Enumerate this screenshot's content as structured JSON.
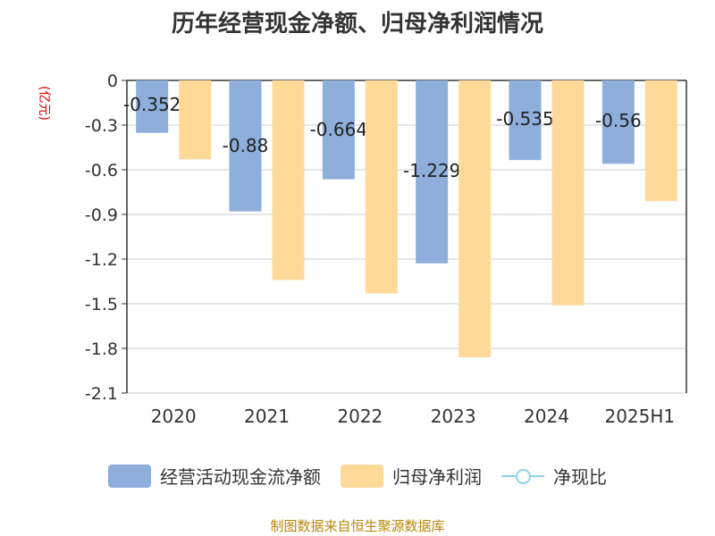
{
  "title": "历年经营现金净额、归母净利润情况",
  "unit": "(亿元)",
  "source": "制图数据来自恒生聚源数据库",
  "chart_data": {
    "type": "bar",
    "categories": [
      "2020",
      "2021",
      "2022",
      "2023",
      "2024",
      "2025H1"
    ],
    "series": [
      {
        "name": "经营活动现金流净额",
        "values": [
          -0.352,
          -0.88,
          -0.664,
          -1.229,
          -0.535,
          -0.56
        ],
        "labels": [
          "-0.352",
          "-0.88",
          "-0.664",
          "-1.229",
          "-0.535",
          "-0.56"
        ],
        "color": "#8eaedc"
      },
      {
        "name": "归母净利润",
        "values": [
          -0.53,
          -1.34,
          -1.43,
          -1.86,
          -1.51,
          -0.81
        ],
        "color": "#ffd998"
      }
    ],
    "line_series": {
      "name": "净现比",
      "color": "#8fd3e8"
    },
    "ylim": [
      -2.1,
      0
    ],
    "yticks": [
      0,
      -0.3,
      -0.6,
      -0.9,
      -1.2,
      -1.5,
      -1.8,
      -2.1
    ],
    "ytick_labels": [
      "0",
      "-0.3",
      "-0.6",
      "-0.9",
      "-1.2",
      "-1.5",
      "-1.8",
      "-2.1"
    ],
    "grid": true,
    "legend_position": "bottom"
  }
}
